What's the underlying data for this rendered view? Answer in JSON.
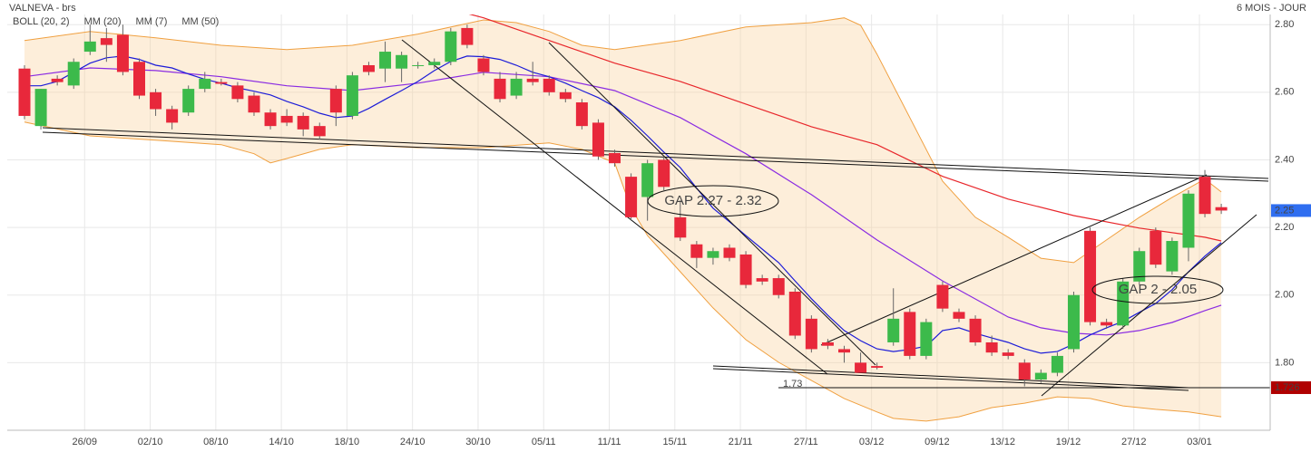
{
  "header": {
    "title": "VALNEVA - brs",
    "period": "6 MOIS - JOUR"
  },
  "chart_data": {
    "type": "candlestick",
    "categories": [
      null,
      null,
      null,
      null,
      "26/09",
      null,
      null,
      null,
      "02/10",
      null,
      null,
      null,
      "08/10",
      null,
      null,
      null,
      "14/10",
      null,
      null,
      null,
      "18/10",
      null,
      null,
      null,
      "24/10",
      null,
      null,
      null,
      "30/10",
      null,
      null,
      null,
      "05/11",
      null,
      null,
      null,
      "11/11",
      null,
      null,
      null,
      "15/11",
      null,
      null,
      null,
      "21/11",
      null,
      null,
      null,
      "27/11",
      null,
      null,
      null,
      "03/12",
      null,
      null,
      null,
      "09/12",
      null,
      null,
      null,
      "13/12",
      null,
      null,
      null,
      "19/12",
      null,
      null,
      null,
      "27/12",
      null,
      null,
      null,
      "03/01",
      null
    ],
    "open": [
      2.67,
      2.5,
      2.64,
      2.62,
      2.72,
      2.76,
      2.77,
      2.69,
      2.6,
      2.55,
      2.54,
      2.61,
      2.63,
      2.62,
      2.59,
      2.54,
      2.53,
      2.53,
      2.5,
      2.61,
      2.53,
      2.68,
      2.67,
      2.67,
      2.68,
      2.68,
      2.69,
      2.79,
      2.7,
      2.64,
      2.59,
      2.64,
      2.64,
      2.6,
      2.57,
      2.51,
      2.42,
      2.35,
      2.29,
      2.4,
      2.23,
      2.15,
      2.11,
      2.14,
      2.12,
      2.05,
      2.05,
      2.01,
      1.93,
      1.86,
      1.84,
      1.8,
      1.79,
      1.86,
      1.95,
      1.82,
      2.03,
      1.95,
      1.93,
      1.86,
      1.83,
      1.8,
      1.75,
      1.77,
      1.84,
      2.19,
      1.92,
      1.91,
      2.04,
      2.19,
      2.07,
      2.14,
      2.35,
      2.26
    ],
    "close": [
      2.53,
      2.61,
      2.63,
      2.69,
      2.75,
      2.74,
      2.66,
      2.59,
      2.55,
      2.51,
      2.61,
      2.64,
      2.625,
      2.58,
      2.54,
      2.5,
      2.51,
      2.49,
      2.47,
      2.54,
      2.65,
      2.66,
      2.72,
      2.71,
      2.68,
      2.69,
      2.78,
      2.74,
      2.66,
      2.58,
      2.64,
      2.63,
      2.6,
      2.58,
      2.5,
      2.41,
      2.39,
      2.23,
      2.39,
      2.32,
      2.17,
      2.11,
      2.13,
      2.11,
      2.03,
      2.04,
      2.0,
      1.88,
      1.84,
      1.85,
      1.83,
      1.77,
      1.785,
      1.93,
      1.82,
      1.92,
      1.96,
      1.93,
      1.86,
      1.83,
      1.82,
      1.75,
      1.77,
      1.82,
      2.0,
      1.92,
      1.91,
      2.04,
      2.13,
      2.09,
      2.16,
      2.3,
      2.24,
      2.25
    ],
    "high": [
      2.68,
      2.61,
      2.65,
      2.7,
      2.8,
      2.79,
      2.8,
      2.7,
      2.61,
      2.56,
      2.62,
      2.66,
      2.64,
      2.63,
      2.6,
      2.55,
      2.55,
      2.54,
      2.51,
      2.62,
      2.66,
      2.69,
      2.75,
      2.72,
      2.69,
      2.7,
      2.79,
      2.8,
      2.71,
      2.66,
      2.66,
      2.69,
      2.65,
      2.61,
      2.58,
      2.52,
      2.43,
      2.36,
      2.4,
      2.41,
      2.28,
      2.16,
      2.14,
      2.15,
      2.13,
      2.06,
      2.06,
      2.02,
      1.94,
      1.87,
      1.85,
      1.83,
      1.8,
      2.02,
      1.96,
      1.93,
      2.04,
      1.96,
      1.94,
      1.88,
      1.84,
      1.81,
      1.78,
      1.83,
      2.01,
      2.2,
      1.93,
      2.05,
      2.14,
      2.2,
      2.17,
      2.31,
      2.37,
      2.27
    ],
    "low": [
      2.52,
      2.49,
      2.62,
      2.61,
      2.71,
      2.69,
      2.65,
      2.58,
      2.53,
      2.49,
      2.53,
      2.6,
      2.62,
      2.57,
      2.53,
      2.49,
      2.5,
      2.47,
      2.46,
      2.5,
      2.52,
      2.65,
      2.63,
      2.63,
      2.67,
      2.67,
      2.68,
      2.73,
      2.65,
      2.57,
      2.58,
      2.62,
      2.59,
      2.57,
      2.49,
      2.4,
      2.38,
      2.22,
      2.22,
      2.31,
      2.16,
      2.08,
      2.09,
      2.1,
      2.02,
      2.03,
      1.99,
      1.87,
      1.83,
      1.84,
      1.8,
      1.77,
      1.78,
      1.85,
      1.81,
      1.81,
      1.95,
      1.92,
      1.85,
      1.82,
      1.81,
      1.73,
      1.74,
      1.76,
      1.83,
      1.91,
      1.9,
      1.9,
      2.03,
      2.08,
      2.06,
      2.1,
      2.23,
      2.24
    ],
    "up_color": "#3cba4b",
    "down_color": "#e8283b",
    "series": [
      {
        "name": "BOLL (20, 2)",
        "color": "#f0a040",
        "upper": {
          "x": [
            0,
            4,
            8,
            12,
            16,
            20,
            24,
            28,
            30,
            32,
            34,
            36,
            40,
            44,
            48,
            50,
            51,
            52,
            54,
            56,
            58,
            60,
            62,
            64,
            66,
            68,
            70,
            72,
            73
          ],
          "values": [
            2.753,
            2.78,
            2.761,
            2.739,
            2.726,
            2.739,
            2.772,
            2.814,
            2.806,
            2.78,
            2.739,
            2.726,
            2.753,
            2.793,
            2.806,
            2.82,
            2.798,
            2.713,
            2.525,
            2.337,
            2.23,
            2.171,
            2.109,
            2.096,
            2.163,
            2.23,
            2.289,
            2.343,
            2.305
          ]
        },
        "lower": {
          "x": [
            0,
            4,
            8,
            12,
            14,
            15,
            16,
            18,
            20,
            24,
            28,
            32,
            34,
            36,
            37,
            38,
            40,
            42,
            44,
            46,
            48,
            50,
            52,
            53,
            55,
            57,
            59,
            61,
            63,
            65,
            67,
            69,
            71,
            73
          ],
          "values": [
            2.512,
            2.471,
            2.458,
            2.445,
            2.418,
            2.391,
            2.404,
            2.431,
            2.445,
            2.436,
            2.436,
            2.45,
            2.431,
            2.391,
            2.257,
            2.176,
            2.069,
            1.962,
            1.868,
            1.801,
            1.747,
            1.694,
            1.654,
            1.635,
            1.627,
            1.64,
            1.667,
            1.68,
            1.699,
            1.694,
            1.672,
            1.662,
            1.654,
            1.64
          ]
        }
      },
      {
        "name": "MM (20)",
        "color": "#8a2be2",
        "x": [
          0,
          4,
          8,
          12,
          16,
          20,
          24,
          28,
          32,
          36,
          40,
          44,
          48,
          52,
          56,
          60,
          62,
          64,
          66,
          68,
          70,
          72,
          73
        ],
        "values": [
          2.646,
          2.672,
          2.664,
          2.646,
          2.619,
          2.605,
          2.627,
          2.659,
          2.646,
          2.605,
          2.525,
          2.418,
          2.297,
          2.163,
          2.042,
          1.935,
          1.903,
          1.887,
          1.882,
          1.895,
          1.919,
          1.954,
          1.97
        ]
      },
      {
        "name": "MM (7)",
        "color": "#1c1cd8",
        "x": [
          0,
          1,
          2,
          3,
          4,
          5,
          6,
          7,
          8,
          9,
          10,
          11,
          12,
          13,
          14,
          15,
          16,
          17,
          18,
          19,
          20,
          21,
          22,
          23,
          24,
          25,
          26,
          27,
          28,
          29,
          30,
          31,
          32,
          33,
          34,
          35,
          36,
          37,
          38,
          39,
          40,
          41,
          42,
          43,
          44,
          45,
          46,
          47,
          48,
          49,
          50,
          51,
          52,
          53,
          54,
          55,
          56,
          57,
          58,
          59,
          60,
          61,
          62,
          63,
          64,
          65,
          66,
          67,
          68,
          69,
          70,
          71,
          72,
          73
        ],
        "values": [
          2.619,
          2.619,
          2.632,
          2.659,
          2.686,
          2.702,
          2.707,
          2.697,
          2.68,
          2.672,
          2.654,
          2.638,
          2.627,
          2.613,
          2.603,
          2.592,
          2.573,
          2.557,
          2.538,
          2.525,
          2.53,
          2.552,
          2.579,
          2.605,
          2.632,
          2.664,
          2.691,
          2.707,
          2.705,
          2.697,
          2.68,
          2.659,
          2.646,
          2.627,
          2.605,
          2.584,
          2.557,
          2.517,
          2.471,
          2.423,
          2.377,
          2.316,
          2.257,
          2.217,
          2.176,
          2.136,
          2.096,
          2.042,
          1.989,
          1.94,
          1.895,
          1.865,
          1.841,
          1.833,
          1.839,
          1.849,
          1.895,
          1.903,
          1.887,
          1.873,
          1.86,
          1.841,
          1.828,
          1.833,
          1.855,
          1.882,
          1.903,
          1.922,
          1.949,
          1.975,
          2.016,
          2.069,
          2.115,
          2.155
        ]
      },
      {
        "name": "MM (50)",
        "color": "#e8262b",
        "x": [
          27,
          28,
          32,
          36,
          40,
          44,
          48,
          52,
          56,
          60,
          64,
          68,
          72,
          73
        ],
        "values": [
          2.833,
          2.82,
          2.753,
          2.686,
          2.632,
          2.565,
          2.498,
          2.445,
          2.351,
          2.284,
          2.235,
          2.198,
          2.171,
          2.16
        ]
      }
    ],
    "ylim": [
      1.6,
      2.83
    ],
    "yticks": [
      {
        "value": 1.8,
        "label": "1.80"
      },
      {
        "value": 2.0,
        "label": "2.00"
      },
      {
        "value": 2.2,
        "label": "2.20"
      },
      {
        "value": 2.4,
        "label": "2.40"
      },
      {
        "value": 2.6,
        "label": "2.60"
      },
      {
        "value": 2.8,
        "label": "2.80"
      }
    ],
    "grid": true,
    "price_tags": [
      {
        "value": 2.25,
        "color": "#2f6ef0"
      },
      {
        "value": 1.726,
        "color": "#b00000"
      }
    ],
    "level_label": 1.73,
    "annotations": [
      {
        "text": "GAP 2.27 - 2.32"
      },
      {
        "text": "GAP 2 - 2.05"
      }
    ]
  }
}
